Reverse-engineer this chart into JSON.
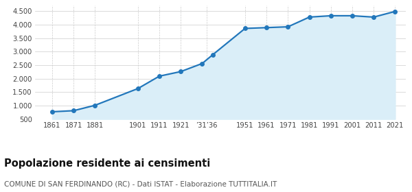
{
  "years": [
    1861,
    1871,
    1881,
    1901,
    1911,
    1921,
    1931,
    1936,
    1951,
    1961,
    1971,
    1981,
    1991,
    2001,
    2011,
    2021
  ],
  "population": [
    770,
    810,
    1010,
    1630,
    2090,
    2260,
    2560,
    2890,
    3860,
    3890,
    3920,
    4280,
    4330,
    4330,
    4280,
    4490
  ],
  "x_tick_years": [
    1861,
    1871,
    1881,
    1901,
    1911,
    1921,
    1933,
    1951,
    1961,
    1971,
    1981,
    1991,
    2001,
    2011,
    2021
  ],
  "x_tick_labels": [
    "1861",
    "1871",
    "1881",
    "1901",
    "1911",
    "1921",
    "’31’36",
    "1951",
    "1961",
    "1971",
    "1981",
    "1991",
    "2001",
    "2011",
    "2021"
  ],
  "line_color": "#2277bb",
  "fill_color": "#daeef8",
  "marker_color": "#2277bb",
  "grid_color": "#cccccc",
  "bg_color": "#ffffff",
  "title": "Popolazione residente ai censimenti",
  "subtitle": "COMUNE DI SAN FERDINANDO (RC) - Dati ISTAT - Elaborazione TUTTITALIA.IT",
  "title_fontsize": 10.5,
  "subtitle_fontsize": 7.5,
  "ylim": [
    500,
    4700
  ],
  "yticks": [
    500,
    1000,
    1500,
    2000,
    2500,
    3000,
    3500,
    4000,
    4500
  ],
  "xlim_left": 1853,
  "xlim_right": 2026
}
